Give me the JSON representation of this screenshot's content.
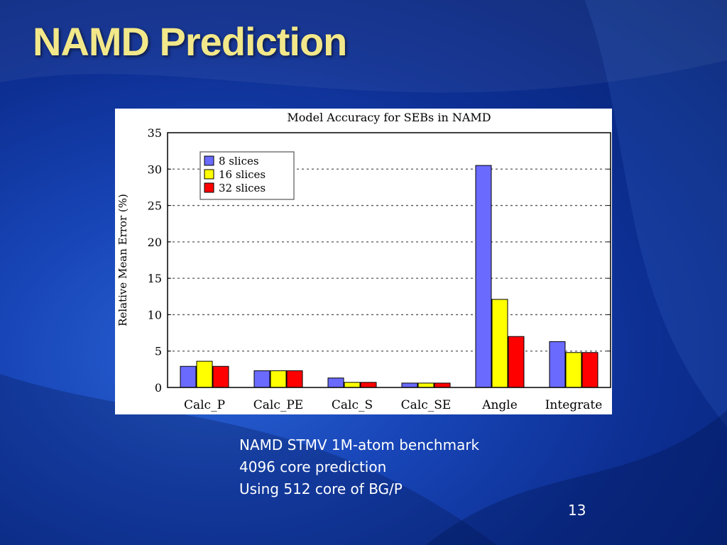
{
  "slide": {
    "title": "NAMD Prediction",
    "caption_lines": [
      "NAMD STMV 1M-atom benchmark",
      "4096 core prediction",
      "Using 512 core of BG/P"
    ],
    "page_number": "13"
  },
  "chart_data": {
    "type": "bar",
    "title": "Model Accuracy for SEBs in NAMD",
    "xlabel": "",
    "ylabel": "Relative Mean Error (%)",
    "ylim": [
      0,
      35
    ],
    "yticks": [
      0,
      5,
      10,
      15,
      20,
      25,
      30,
      35
    ],
    "grid": true,
    "legend_position": "top-left",
    "categories": [
      "Calc_P",
      "Calc_PE",
      "Calc_S",
      "Calc_SE",
      "Angle",
      "Integrate"
    ],
    "series": [
      {
        "name": "8 slices",
        "color": "#6a6aff",
        "values": [
          2.9,
          2.3,
          1.3,
          0.6,
          30.5,
          6.3
        ]
      },
      {
        "name": "16 slices",
        "color": "#ffff00",
        "values": [
          3.6,
          2.3,
          0.7,
          0.6,
          12.1,
          4.8
        ]
      },
      {
        "name": "32 slices",
        "color": "#ff0000",
        "values": [
          2.9,
          2.3,
          0.7,
          0.6,
          7.0,
          4.8
        ]
      }
    ]
  }
}
